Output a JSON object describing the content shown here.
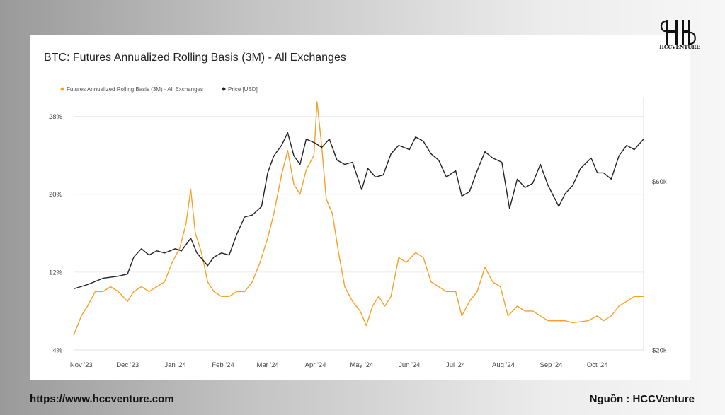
{
  "branding": {
    "logo_text": "HCCVENTURE",
    "url": "https://www.hccventure.com",
    "source": "Nguồn : HCCVenture"
  },
  "chart_data": {
    "type": "line",
    "title": "BTC: Futures Annualized Rolling Basis (3M) - All Exchanges",
    "x_ticks": [
      "Nov '23",
      "Dec '23",
      "Jan '24",
      "Feb '24",
      "Mar '24",
      "Apr '24",
      "May '24",
      "Jun '24",
      "Jul '24",
      "Aug '24",
      "Sep '24",
      "Oct '24"
    ],
    "x_range": [
      "2023-10-27",
      "2024-10-31"
    ],
    "y_left": {
      "ticks": [
        "4%",
        "12%",
        "20%",
        "28%"
      ],
      "values": [
        4,
        12,
        20,
        28
      ],
      "range": [
        4,
        30
      ]
    },
    "y_right": {
      "ticks": [
        "$20k",
        "$60k"
      ],
      "values": [
        20000,
        60000
      ],
      "range": [
        20000,
        80000
      ]
    },
    "grid": "horizontal",
    "legend_position": "top-left",
    "series": [
      {
        "name": "Futures Annualized Rolling Basis (3M) - All Exchanges",
        "axis": "left",
        "color": "#f7a127",
        "points": [
          [
            "2023-10-27",
            5.5
          ],
          [
            "2023-11-01",
            7.5
          ],
          [
            "2023-11-05",
            8.5
          ],
          [
            "2023-11-10",
            10.0
          ],
          [
            "2023-11-15",
            10.0
          ],
          [
            "2023-11-20",
            10.5
          ],
          [
            "2023-11-25",
            10.0
          ],
          [
            "2023-12-01",
            9.0
          ],
          [
            "2023-12-05",
            10.0
          ],
          [
            "2023-12-10",
            10.5
          ],
          [
            "2023-12-15",
            10.0
          ],
          [
            "2023-12-20",
            10.5
          ],
          [
            "2023-12-25",
            11.0
          ],
          [
            "2023-12-30",
            13.0
          ],
          [
            "2024-01-04",
            14.5
          ],
          [
            "2024-01-08",
            17.0
          ],
          [
            "2024-01-11",
            20.5
          ],
          [
            "2024-01-14",
            16.0
          ],
          [
            "2024-01-18",
            14.0
          ],
          [
            "2024-01-22",
            11.0
          ],
          [
            "2024-01-26",
            10.0
          ],
          [
            "2024-01-31",
            9.5
          ],
          [
            "2024-02-05",
            9.5
          ],
          [
            "2024-02-10",
            10.0
          ],
          [
            "2024-02-15",
            10.0
          ],
          [
            "2024-02-20",
            11.0
          ],
          [
            "2024-02-25",
            13.0
          ],
          [
            "2024-03-01",
            15.5
          ],
          [
            "2024-03-05",
            18.0
          ],
          [
            "2024-03-10",
            22.0
          ],
          [
            "2024-03-14",
            24.5
          ],
          [
            "2024-03-18",
            21.0
          ],
          [
            "2024-03-22",
            20.0
          ],
          [
            "2024-03-26",
            22.5
          ],
          [
            "2024-03-31",
            24.0
          ],
          [
            "2024-04-02",
            29.5
          ],
          [
            "2024-04-05",
            25.0
          ],
          [
            "2024-04-08",
            19.5
          ],
          [
            "2024-04-12",
            18.0
          ],
          [
            "2024-04-16",
            14.0
          ],
          [
            "2024-04-20",
            10.5
          ],
          [
            "2024-04-25",
            9.0
          ],
          [
            "2024-04-30",
            8.0
          ],
          [
            "2024-05-04",
            6.5
          ],
          [
            "2024-05-08",
            8.5
          ],
          [
            "2024-05-12",
            9.5
          ],
          [
            "2024-05-16",
            8.5
          ],
          [
            "2024-05-20",
            9.5
          ],
          [
            "2024-05-25",
            13.5
          ],
          [
            "2024-05-30",
            13.0
          ],
          [
            "2024-06-05",
            14.0
          ],
          [
            "2024-06-10",
            13.5
          ],
          [
            "2024-06-15",
            11.0
          ],
          [
            "2024-06-20",
            10.5
          ],
          [
            "2024-06-25",
            10.0
          ],
          [
            "2024-07-01",
            10.0
          ],
          [
            "2024-07-05",
            7.5
          ],
          [
            "2024-07-10",
            9.0
          ],
          [
            "2024-07-15",
            10.0
          ],
          [
            "2024-07-20",
            12.5
          ],
          [
            "2024-07-25",
            11.0
          ],
          [
            "2024-07-30",
            10.5
          ],
          [
            "2024-08-04",
            7.5
          ],
          [
            "2024-08-10",
            8.5
          ],
          [
            "2024-08-15",
            8.0
          ],
          [
            "2024-08-20",
            8.0
          ],
          [
            "2024-08-25",
            7.5
          ],
          [
            "2024-08-30",
            7.0
          ],
          [
            "2024-09-05",
            7.0
          ],
          [
            "2024-09-10",
            7.0
          ],
          [
            "2024-09-15",
            6.8
          ],
          [
            "2024-09-20",
            6.9
          ],
          [
            "2024-09-25",
            7.0
          ],
          [
            "2024-10-01",
            7.5
          ],
          [
            "2024-10-05",
            7.0
          ],
          [
            "2024-10-10",
            7.5
          ],
          [
            "2024-10-15",
            8.5
          ],
          [
            "2024-10-20",
            9.0
          ],
          [
            "2024-10-25",
            9.5
          ],
          [
            "2024-10-31",
            9.5
          ]
        ]
      },
      {
        "name": "Price [USD]",
        "axis": "right",
        "color": "#222222",
        "points": [
          [
            "2023-10-27",
            34500
          ],
          [
            "2023-11-05",
            35500
          ],
          [
            "2023-11-15",
            37000
          ],
          [
            "2023-11-25",
            37500
          ],
          [
            "2023-12-01",
            38000
          ],
          [
            "2023-12-05",
            42000
          ],
          [
            "2023-12-10",
            44000
          ],
          [
            "2023-12-15",
            42500
          ],
          [
            "2023-12-20",
            43500
          ],
          [
            "2023-12-25",
            43000
          ],
          [
            "2024-01-01",
            44000
          ],
          [
            "2024-01-05",
            43500
          ],
          [
            "2024-01-11",
            46500
          ],
          [
            "2024-01-15",
            43000
          ],
          [
            "2024-01-22",
            40000
          ],
          [
            "2024-01-26",
            42000
          ],
          [
            "2024-01-31",
            43000
          ],
          [
            "2024-02-05",
            42500
          ],
          [
            "2024-02-10",
            47500
          ],
          [
            "2024-02-15",
            51500
          ],
          [
            "2024-02-20",
            52000
          ],
          [
            "2024-02-26",
            54000
          ],
          [
            "2024-03-01",
            62000
          ],
          [
            "2024-03-05",
            66000
          ],
          [
            "2024-03-10",
            68500
          ],
          [
            "2024-03-14",
            71500
          ],
          [
            "2024-03-18",
            66000
          ],
          [
            "2024-03-22",
            64000
          ],
          [
            "2024-03-26",
            70000
          ],
          [
            "2024-04-01",
            69000
          ],
          [
            "2024-04-05",
            68000
          ],
          [
            "2024-04-10",
            70000
          ],
          [
            "2024-04-15",
            65000
          ],
          [
            "2024-04-20",
            64000
          ],
          [
            "2024-04-25",
            64500
          ],
          [
            "2024-05-01",
            58000
          ],
          [
            "2024-05-05",
            63000
          ],
          [
            "2024-05-10",
            61000
          ],
          [
            "2024-05-15",
            61500
          ],
          [
            "2024-05-20",
            66500
          ],
          [
            "2024-05-25",
            68500
          ],
          [
            "2024-06-01",
            67500
          ],
          [
            "2024-06-05",
            70500
          ],
          [
            "2024-06-10",
            69500
          ],
          [
            "2024-06-15",
            66500
          ],
          [
            "2024-06-20",
            65000
          ],
          [
            "2024-06-25",
            61000
          ],
          [
            "2024-07-01",
            62500
          ],
          [
            "2024-07-05",
            56500
          ],
          [
            "2024-07-10",
            57500
          ],
          [
            "2024-07-15",
            62500
          ],
          [
            "2024-07-20",
            67000
          ],
          [
            "2024-07-25",
            65500
          ],
          [
            "2024-07-31",
            64500
          ],
          [
            "2024-08-05",
            53500
          ],
          [
            "2024-08-10",
            60500
          ],
          [
            "2024-08-15",
            58500
          ],
          [
            "2024-08-20",
            59500
          ],
          [
            "2024-08-25",
            64000
          ],
          [
            "2024-08-30",
            59000
          ],
          [
            "2024-09-06",
            54000
          ],
          [
            "2024-09-10",
            57000
          ],
          [
            "2024-09-15",
            59000
          ],
          [
            "2024-09-20",
            63000
          ],
          [
            "2024-09-27",
            65500
          ],
          [
            "2024-10-01",
            62000
          ],
          [
            "2024-10-05",
            62000
          ],
          [
            "2024-10-10",
            60500
          ],
          [
            "2024-10-15",
            66000
          ],
          [
            "2024-10-20",
            68500
          ],
          [
            "2024-10-25",
            67500
          ],
          [
            "2024-10-31",
            70000
          ]
        ]
      }
    ]
  }
}
